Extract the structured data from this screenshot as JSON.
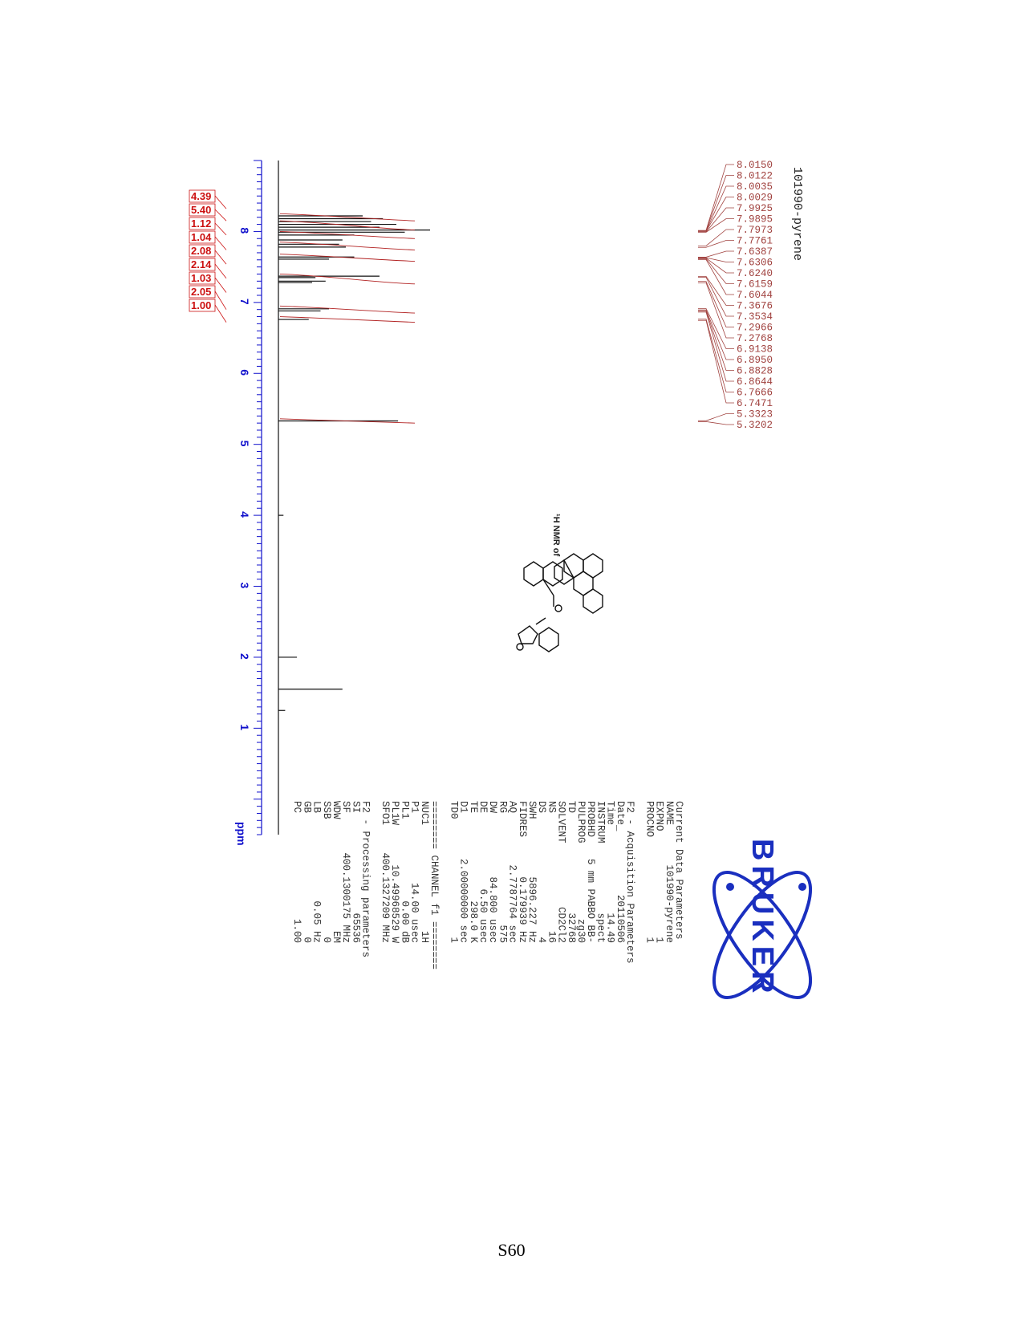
{
  "sample_title": "101990-pyrene",
  "structure_caption": "¹H NMR of",
  "brand": {
    "logo_text": "BRUKER",
    "color": "#1a2fbf"
  },
  "page_number": "S60",
  "chart_data": {
    "type": "line",
    "title": "101990-pyrene",
    "xlabel": "ppm",
    "xlim": [
      9.0,
      -0.5
    ],
    "x_reversed": true,
    "x_ticks": [
      "8",
      "7",
      "6",
      "5",
      "4",
      "3",
      "2",
      "1"
    ],
    "x_tick_values": [
      8,
      7,
      6,
      5,
      4,
      3,
      2,
      1
    ],
    "peak_labels": [
      "8.0150",
      "8.0122",
      "8.0035",
      "8.0029",
      "7.9925",
      "7.9895",
      "7.7973",
      "7.7761",
      "7.6387",
      "7.6306",
      "7.6240",
      "7.6159",
      "7.6044",
      "7.3676",
      "7.3534",
      "7.2966",
      "7.2768",
      "6.9138",
      "6.8950",
      "6.8828",
      "6.8644",
      "6.7666",
      "6.7471",
      "5.3323",
      "5.3202"
    ],
    "peak_ppm": [
      8.015,
      8.0122,
      8.0035,
      8.0029,
      7.9925,
      7.9895,
      7.7973,
      7.7761,
      7.6387,
      7.6306,
      7.624,
      7.6159,
      7.6044,
      7.3676,
      7.3534,
      7.2966,
      7.2768,
      6.9138,
      6.895,
      6.8828,
      6.8644,
      6.7666,
      6.7471,
      5.3323,
      5.3202
    ],
    "integrals": [
      "4.39",
      "5.40",
      "1.12",
      "1.04",
      "2.08",
      "2.14",
      "1.03",
      "2.05",
      "1.00"
    ],
    "integral_ppm": [
      8.32,
      8.15,
      7.95,
      7.74,
      7.54,
      7.34,
      7.14,
      6.9,
      6.72
    ],
    "peaks": [
      {
        "ppm": 8.22,
        "height": 0.5
      },
      {
        "ppm": 8.18,
        "height": 0.62
      },
      {
        "ppm": 8.14,
        "height": 0.55
      },
      {
        "ppm": 8.1,
        "height": 0.7
      },
      {
        "ppm": 8.06,
        "height": 0.6
      },
      {
        "ppm": 8.02,
        "height": 0.9
      },
      {
        "ppm": 7.99,
        "height": 0.75
      },
      {
        "ppm": 7.95,
        "height": 0.45
      },
      {
        "ppm": 7.88,
        "height": 0.38
      },
      {
        "ppm": 7.82,
        "height": 0.36
      },
      {
        "ppm": 7.78,
        "height": 0.4
      },
      {
        "ppm": 7.64,
        "height": 0.45
      },
      {
        "ppm": 7.61,
        "height": 0.3
      },
      {
        "ppm": 7.37,
        "height": 0.6
      },
      {
        "ppm": 7.35,
        "height": 0.22
      },
      {
        "ppm": 7.3,
        "height": 0.28
      },
      {
        "ppm": 7.28,
        "height": 0.2
      },
      {
        "ppm": 6.91,
        "height": 0.3
      },
      {
        "ppm": 6.88,
        "height": 0.25
      },
      {
        "ppm": 6.76,
        "height": 0.18
      },
      {
        "ppm": 5.33,
        "height": 0.71
      },
      {
        "ppm": 4.0,
        "height": 0.03
      },
      {
        "ppm": 2.0,
        "height": 0.11
      },
      {
        "ppm": 1.55,
        "height": 0.38
      },
      {
        "ppm": 1.25,
        "height": 0.04
      }
    ]
  },
  "params": {
    "current_title": "Current Data Parameters",
    "current": [
      [
        "NAME",
        "101990-pyrene"
      ],
      [
        "EXPNO",
        "1"
      ],
      [
        "PROCNO",
        "1"
      ]
    ],
    "acq_title": "F2 - Acquisition Parameters",
    "acq": [
      [
        "Date_",
        "20110506"
      ],
      [
        "Time",
        "14.49"
      ],
      [
        "INSTRUM",
        "spect"
      ],
      [
        "PROBHD",
        "5 mm PABBO BB-"
      ],
      [
        "PULPROG",
        "zg30"
      ],
      [
        "TD",
        "32768"
      ],
      [
        "SOLVENT",
        "CD2Cl2"
      ],
      [
        "NS",
        "16"
      ],
      [
        "DS",
        "4"
      ],
      [
        "SWH",
        "5896.227 Hz"
      ],
      [
        "FIDRES",
        "0.179939 Hz"
      ],
      [
        "AQ",
        "2.7787764 sec"
      ],
      [
        "RG",
        "575"
      ],
      [
        "DW",
        "84.800 usec"
      ],
      [
        "DE",
        "6.50 usec"
      ],
      [
        "TE",
        "298.0 K"
      ],
      [
        "D1",
        "2.00000000 sec"
      ],
      [
        "TD0",
        "1"
      ]
    ],
    "channel_title": "======== CHANNEL f1 ========",
    "channel": [
      [
        "NUC1",
        "1H"
      ],
      [
        "P1",
        "14.00 usec"
      ],
      [
        "PL1",
        "0.00 dB"
      ],
      [
        "PL1W",
        "10.49968529 W"
      ],
      [
        "SFO1",
        "400.1327209 MHz"
      ]
    ],
    "proc_title": "F2 - Processing parameters",
    "proc": [
      [
        "SI",
        "65536"
      ],
      [
        "SF",
        "400.1300175 MHz"
      ],
      [
        "WDW",
        "EM"
      ],
      [
        "SSB",
        "0"
      ],
      [
        "LB",
        "0.05 Hz"
      ],
      [
        "GB",
        "0"
      ],
      [
        "PC",
        "1.00"
      ]
    ]
  }
}
